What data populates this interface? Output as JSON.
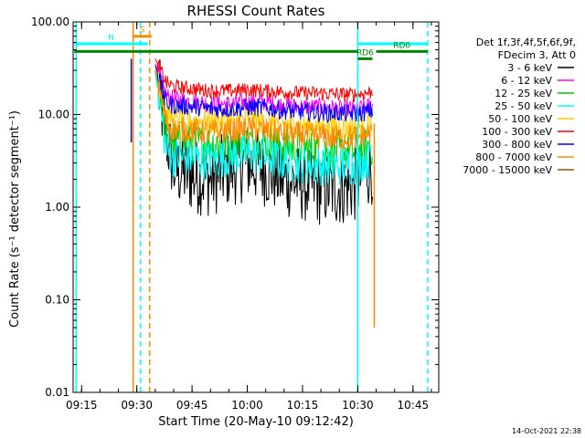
{
  "chart_data": {
    "type": "line",
    "title": "RHESSI Count Rates",
    "xlabel": "Start Time (20-May-10 09:12:42)",
    "ylabel": "Count Rate (s⁻¹ detector segment⁻¹)",
    "y_scale": "log",
    "ylim": [
      0.01,
      100
    ],
    "xlim": [
      "09:12:42",
      "10:52:00"
    ],
    "x_ticks": [
      "09:15",
      "09:30",
      "09:45",
      "10:00",
      "10:15",
      "10:30",
      "10:45"
    ],
    "y_ticks": [
      "0.01",
      "0.10",
      "1.00",
      "10.00",
      "100.00"
    ],
    "legend_header": [
      "Det 1f,3f,4f,5f,6f,9f,",
      "FDecim 3, Att 0"
    ],
    "series": [
      {
        "name": "3 - 6 keV",
        "color": "#000000",
        "x": [
          "09:35",
          "09:38",
          "09:40",
          "09:45",
          "09:50",
          "09:55",
          "10:00",
          "10:05",
          "10:10",
          "10:15",
          "10:20",
          "10:25",
          "10:30",
          "10:32",
          "10:34"
        ],
        "y": [
          30,
          6,
          2.6,
          2.2,
          2.0,
          2.6,
          3.0,
          2.6,
          2.0,
          1.8,
          1.6,
          1.6,
          1.8,
          2.5,
          2.8
        ]
      },
      {
        "name": "6 - 12 keV",
        "color": "#ff00ff",
        "x": [
          "09:35",
          "09:38",
          "09:40",
          "09:45",
          "09:50",
          "09:55",
          "10:00",
          "10:05",
          "10:10",
          "10:15",
          "10:20",
          "10:25",
          "10:30",
          "10:32",
          "10:34"
        ],
        "y": [
          35,
          16,
          14.5,
          14,
          13,
          13,
          13.5,
          13.5,
          12.5,
          12,
          12,
          11.5,
          11.5,
          12,
          12.5
        ]
      },
      {
        "name": "12 - 25 keV",
        "color": "#00cc00",
        "x": [
          "09:35",
          "09:38",
          "09:40",
          "09:45",
          "09:50",
          "09:55",
          "10:00",
          "10:05",
          "10:10",
          "10:15",
          "10:20",
          "10:25",
          "10:30",
          "10:32",
          "10:34"
        ],
        "y": [
          30,
          6.5,
          5.2,
          5.0,
          4.8,
          5.0,
          5.2,
          5.0,
          4.6,
          4.3,
          4.0,
          4.0,
          4.0,
          4.4,
          4.6
        ]
      },
      {
        "name": "25 - 50 keV",
        "color": "#00ffff",
        "x": [
          "09:35",
          "09:38",
          "09:40",
          "09:45",
          "09:50",
          "09:55",
          "10:00",
          "10:05",
          "10:10",
          "10:15",
          "10:20",
          "10:25",
          "10:30",
          "10:32",
          "10:34"
        ],
        "y": [
          28,
          4.0,
          3.5,
          3.4,
          3.2,
          3.5,
          3.8,
          3.5,
          3.1,
          2.9,
          2.8,
          2.8,
          2.9,
          3.2,
          3.5
        ]
      },
      {
        "name": "50 - 100 keV",
        "color": "#ffcc00",
        "x": [
          "09:35",
          "09:38",
          "09:40",
          "09:45",
          "09:50",
          "09:55",
          "10:00",
          "10:05",
          "10:10",
          "10:15",
          "10:20",
          "10:25",
          "10:30",
          "10:32",
          "10:34"
        ],
        "y": [
          32,
          10,
          9.0,
          8.6,
          8.3,
          8.5,
          8.8,
          8.5,
          8.0,
          7.6,
          7.4,
          7.2,
          7.2,
          7.6,
          7.8
        ]
      },
      {
        "name": "100 - 300 keV",
        "color": "#ff0000",
        "x": [
          "09:35",
          "09:38",
          "09:40",
          "09:45",
          "09:50",
          "09:55",
          "10:00",
          "10:05",
          "10:10",
          "10:15",
          "10:20",
          "10:25",
          "10:30",
          "10:32",
          "10:34"
        ],
        "y": [
          40,
          22,
          20,
          19,
          18,
          18,
          18.5,
          18,
          17.5,
          17,
          17,
          16.5,
          16.5,
          17,
          17.5
        ]
      },
      {
        "name": "300 - 800 keV",
        "color": "#0000ff",
        "x": [
          "09:35",
          "09:38",
          "09:40",
          "09:45",
          "09:50",
          "09:55",
          "10:00",
          "10:05",
          "10:10",
          "10:15",
          "10:20",
          "10:25",
          "10:30",
          "10:32",
          "10:34"
        ],
        "y": [
          34,
          13.5,
          12.5,
          12.2,
          11.5,
          11.5,
          12,
          11.8,
          11,
          10.8,
          10.5,
          10.3,
          10.2,
          10.6,
          11
        ]
      },
      {
        "name": "800 - 7000 keV",
        "color": "#ff8800",
        "x": [
          "09:35",
          "09:38",
          "09:40",
          "09:45",
          "09:50",
          "09:55",
          "10:00",
          "10:05",
          "10:10",
          "10:15",
          "10:20",
          "10:25",
          "10:30",
          "10:32",
          "10:34"
        ],
        "y": [
          30,
          8.0,
          7.0,
          6.8,
          6.4,
          6.6,
          7.0,
          6.7,
          6.2,
          6.0,
          5.8,
          5.6,
          5.7,
          6.0,
          6.3
        ]
      },
      {
        "name": "7000 - 15000 keV",
        "color": "#995500",
        "x": [],
        "y": []
      }
    ],
    "state_bars": [
      {
        "label": "S",
        "color": "#ff8800",
        "x_start": "09:29",
        "x_end": "09:34",
        "y": 70
      },
      {
        "label": "N",
        "color": "#00ffff",
        "x_start": "09:13",
        "x_end": "09:33",
        "y": 58
      },
      {
        "label": "",
        "color": "#00ffff",
        "x_start": "10:30",
        "x_end": "10:49",
        "y": 58
      },
      {
        "label": "",
        "color": "#008800",
        "x_start": "09:13",
        "x_end": "10:30",
        "y": 48
      },
      {
        "label": "RD0",
        "color": "#008800",
        "x_start": "10:35",
        "x_end": "10:49",
        "y": 48
      },
      {
        "label": "RD6",
        "color": "#008800",
        "x_start": "10:30",
        "x_end": "10:34",
        "y": 40
      }
    ],
    "vertical_lines": [
      {
        "x": "09:13:30",
        "color": "#00ffff",
        "style": "solid"
      },
      {
        "x": "09:29:00",
        "color": "#ff8800",
        "style": "solid"
      },
      {
        "x": "09:31:00",
        "color": "#00ffff",
        "style": "dashed"
      },
      {
        "x": "09:33:30",
        "color": "#ff8800",
        "style": "dashed"
      },
      {
        "x": "10:30:00",
        "color": "#00ffff",
        "style": "solid"
      },
      {
        "x": "10:49:00",
        "color": "#00ffff",
        "style": "dashed"
      }
    ],
    "colors": {
      "background": "#ffffff",
      "axes": "#000000"
    }
  },
  "footer": {
    "timestamp": "14-Oct-2021 22:38"
  }
}
